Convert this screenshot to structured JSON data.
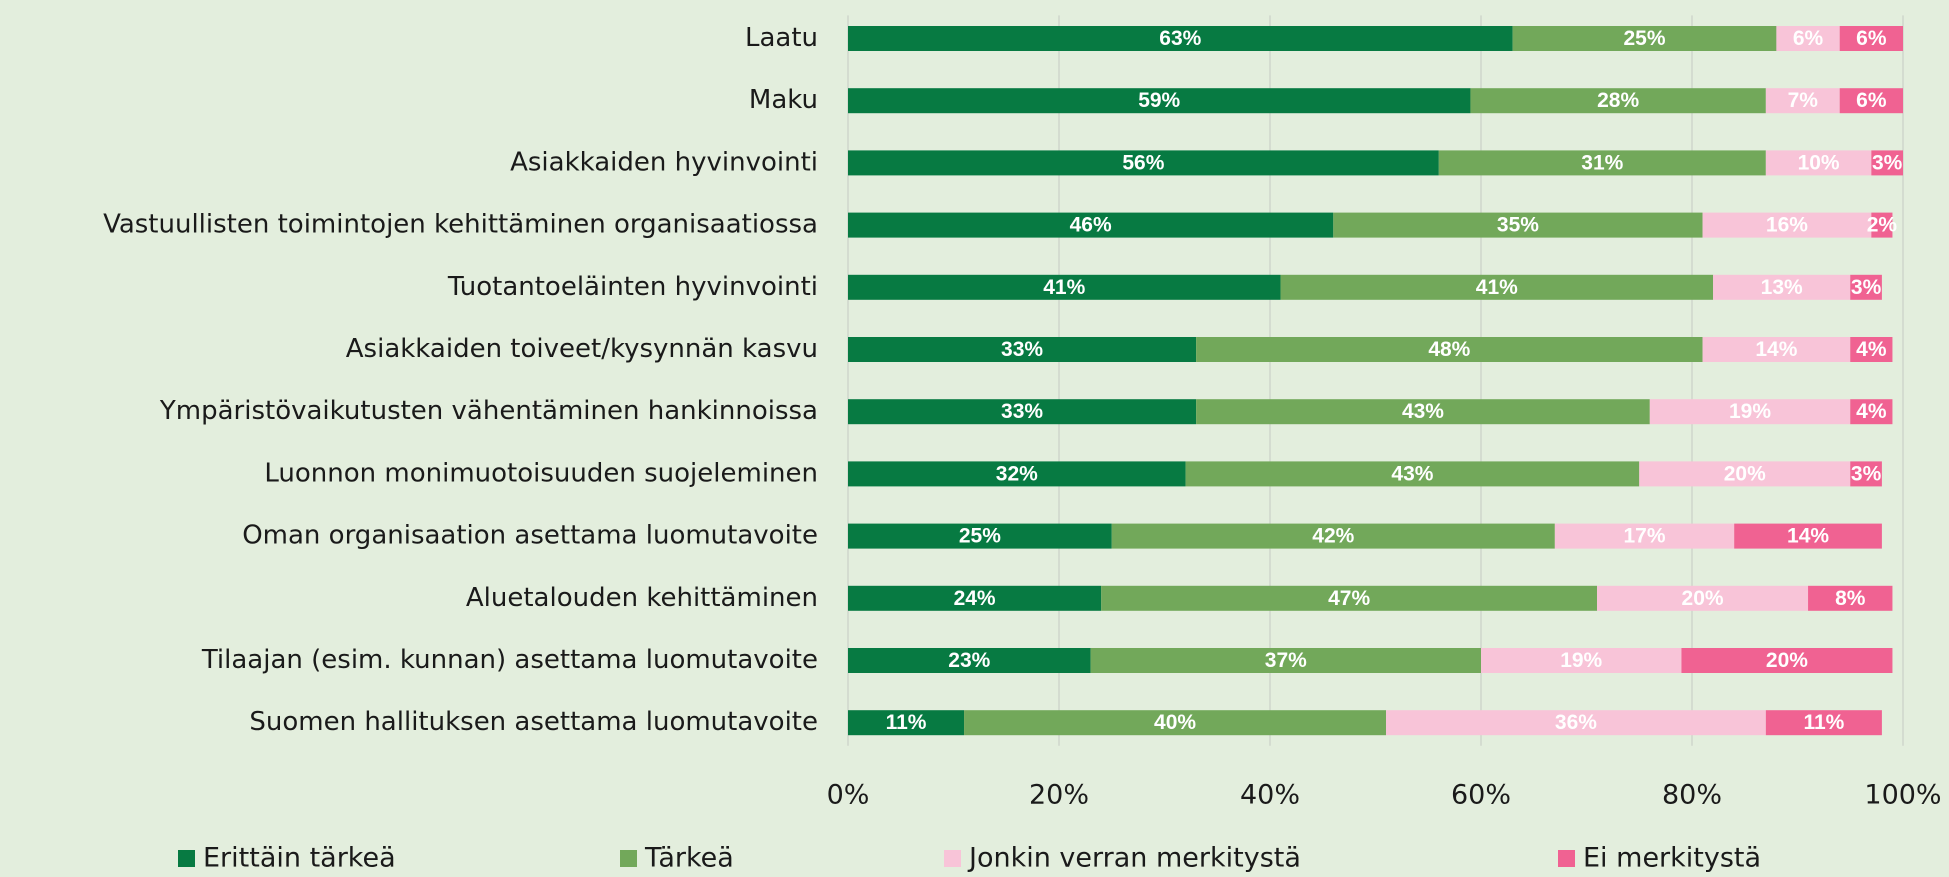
{
  "chart_data": {
    "type": "stacked_barh",
    "categories": [
      "Laatu",
      "Maku",
      "Asiakkaiden hyvinvointi",
      "Vastuullisten toimintojen kehittäminen organisaatiossa",
      "Tuotantoeläinten hyvinvointi",
      "Asiakkaiden toiveet/kysynnän kasvu",
      "Ympäristövaikutusten vähentäminen hankinnoissa",
      "Luonnon monimuotoisuuden suojeleminen",
      "Oman organisaation asettama luomutavoite",
      "Aluetalouden kehittäminen",
      "Tilaajan (esim. kunnan) asettama luomutavoite",
      "Suomen hallituksen asettama luomutavoite"
    ],
    "series": [
      {
        "name": "Erittäin tärkeä",
        "color": "#077a42",
        "values": [
          63,
          59,
          56,
          46,
          41,
          33,
          33,
          32,
          25,
          24,
          23,
          11
        ],
        "value_labels": [
          "63%",
          "59%",
          "56%",
          "46%",
          "41%",
          "33%",
          "33%",
          "32%",
          "25%",
          "24%",
          "23%",
          "11%"
        ]
      },
      {
        "name": "Tärkeä",
        "color": "#72a85a",
        "values": [
          25,
          28,
          31,
          35,
          41,
          48,
          43,
          43,
          42,
          47,
          37,
          40
        ],
        "value_labels": [
          "25%",
          "28%",
          "31%",
          "35%",
          "41%",
          "48%",
          "43%",
          "43%",
          "42%",
          "47%",
          "37%",
          "40%"
        ]
      },
      {
        "name": "Jonkin verran merkitystä",
        "color": "#f8c4d8",
        "values": [
          6,
          7,
          10,
          16,
          13,
          14,
          19,
          20,
          17,
          20,
          19,
          36
        ],
        "value_labels": [
          "6%",
          "7%",
          "10%",
          "16%",
          "13%",
          "14%",
          "19%",
          "20%",
          "17%",
          "20%",
          "19%",
          "36%"
        ]
      },
      {
        "name": "Ei merkitystä",
        "color": "#f06292",
        "values": [
          6,
          6,
          3,
          2,
          3,
          4,
          4,
          3,
          14,
          8,
          20,
          11
        ],
        "value_labels": [
          "6%",
          "6%",
          "3%",
          "2%",
          "3%",
          "4%",
          "4%",
          "3%",
          "14%",
          "8%",
          "20%",
          "11%"
        ]
      }
    ],
    "xlim": [
      0,
      100
    ],
    "xticks": [
      {
        "value": 0,
        "label": "0%"
      },
      {
        "value": 20,
        "label": "20%"
      },
      {
        "value": 40,
        "label": "40%"
      },
      {
        "value": 60,
        "label": "60%"
      },
      {
        "value": 80,
        "label": "80%"
      },
      {
        "value": 100,
        "label": "100%"
      }
    ],
    "grid": true,
    "legend": "bottom"
  }
}
